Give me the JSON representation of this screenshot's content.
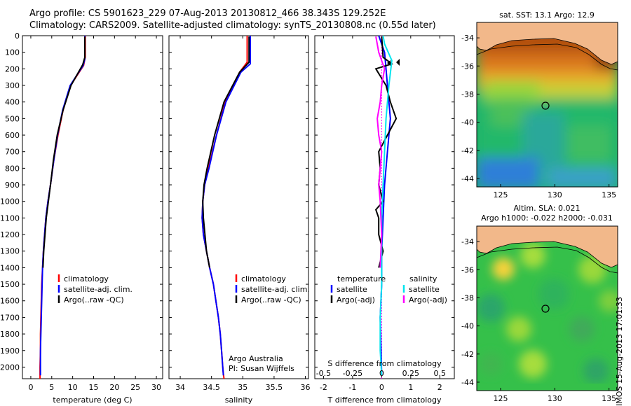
{
  "header": {
    "title_line1": "Argo profile: CS 5901623_229 07-Aug-2013 20130812_466 38.343S 129.252E",
    "title_line2": "Climatology: CARS2009. Satellite-adjusted climatology: synTS_20130808.nc (0.55d later)"
  },
  "stamp": "IMOS 15-Aug-2013 17:01:33",
  "colors": {
    "climatology": "#ff0000",
    "satellite": "#0000ff",
    "argo": "#000000",
    "salinity_satellite": "#00e5ee",
    "salinity_argo": "#ff00ff"
  },
  "chart_data": [
    {
      "type": "line",
      "name": "temperature",
      "xlabel": "temperature (deg C)",
      "xlim": [
        -2,
        31.5
      ],
      "xticks": [
        0,
        5,
        10,
        15,
        20,
        25,
        30
      ],
      "ylim": [
        0,
        2070
      ],
      "yticks": [
        0,
        100,
        200,
        300,
        400,
        500,
        600,
        700,
        800,
        900,
        1000,
        1100,
        1200,
        1300,
        1400,
        1500,
        1600,
        1700,
        1800,
        1900,
        2000
      ],
      "y_reversed": true,
      "legend": [
        "climatology",
        "satellite-adj. clim.",
        "Argo(..raw -QC)"
      ],
      "legend_placement": "lower-center",
      "series": [
        {
          "name": "climatology",
          "color": "#ff0000",
          "x": [
            13.0,
            13.0,
            12.6,
            9.5,
            7.7,
            6.5,
            5.5,
            4.7,
            4.1,
            3.6,
            3.3,
            3.0,
            2.8,
            2.6,
            2.5,
            2.4,
            2.3,
            2.3,
            2.2,
            2.2,
            2.2,
            2.2
          ],
          "y": [
            0,
            130,
            180,
            300,
            450,
            600,
            750,
            900,
            1000,
            1100,
            1200,
            1300,
            1400,
            1500,
            1600,
            1700,
            1800,
            1900,
            2000,
            2050,
            2070,
            2070
          ]
        },
        {
          "name": "satellite-adj. clim.",
          "color": "#0000ff",
          "x": [
            12.9,
            12.9,
            12.5,
            9.4,
            7.6,
            6.4,
            5.5,
            4.7,
            4.1,
            3.6,
            3.3,
            3.0,
            2.8,
            2.7,
            2.6,
            2.5,
            2.4,
            2.3,
            2.3,
            2.3
          ],
          "y": [
            0,
            140,
            180,
            300,
            450,
            600,
            750,
            900,
            1000,
            1100,
            1200,
            1300,
            1400,
            1500,
            1600,
            1700,
            1800,
            1900,
            2000,
            2050
          ]
        },
        {
          "name": "Argo(..raw -QC)",
          "color": "#000000",
          "x": [
            12.9,
            12.9,
            12.4,
            9.6,
            7.7,
            6.3,
            5.4,
            4.8,
            4.2,
            3.7,
            3.4,
            3.1,
            2.9
          ],
          "y": [
            5,
            130,
            175,
            300,
            450,
            600,
            750,
            880,
            1000,
            1100,
            1200,
            1300,
            1400
          ]
        }
      ]
    },
    {
      "type": "line",
      "name": "salinity",
      "xlabel": "salinity",
      "xlim": [
        33.82,
        36.05
      ],
      "xticks": [
        34,
        34.5,
        35,
        35.5,
        36
      ],
      "xticklabels": [
        "34",
        "34.5",
        "35",
        "35.5",
        "36"
      ],
      "ylim": [
        0,
        2070
      ],
      "y_reversed": true,
      "legend": [
        "climatology",
        "satellite-adj. clim.",
        "Argo(..raw -QC)"
      ],
      "legend_placement": "lower-right",
      "annotations": [
        "Argo Australia",
        "PI: Susan Wijffels"
      ],
      "series": [
        {
          "name": "climatology",
          "color": "#ff0000",
          "x": [
            35.07,
            35.07,
            34.95,
            34.72,
            34.58,
            34.45,
            34.39,
            34.36,
            34.35,
            34.37,
            34.42,
            34.47,
            34.53,
            34.57,
            34.61,
            34.64,
            34.66,
            34.68,
            34.69,
            34.7,
            34.7
          ],
          "y": [
            0,
            160,
            220,
            400,
            600,
            800,
            900,
            1000,
            1100,
            1200,
            1300,
            1400,
            1500,
            1600,
            1700,
            1800,
            1900,
            2000,
            2040,
            2070,
            2070
          ]
        },
        {
          "name": "satellite-adj. clim.",
          "color": "#0000ff",
          "x": [
            35.12,
            35.12,
            34.97,
            34.73,
            34.58,
            34.46,
            34.39,
            34.36,
            34.35,
            34.37,
            34.42,
            34.47,
            34.53,
            34.57,
            34.61,
            34.64,
            34.66,
            34.68,
            34.69
          ],
          "y": [
            0,
            170,
            220,
            400,
            600,
            800,
            900,
            1000,
            1100,
            1200,
            1300,
            1400,
            1500,
            1600,
            1700,
            1800,
            1900,
            2000,
            2050
          ]
        },
        {
          "name": "Argo(..raw -QC)",
          "color": "#000000",
          "x": [
            35.1,
            35.1,
            34.95,
            34.7,
            34.55,
            34.43,
            34.38,
            34.36,
            34.37,
            34.42,
            34.47
          ],
          "y": [
            5,
            160,
            220,
            400,
            600,
            800,
            900,
            1000,
            1100,
            1300,
            1400
          ]
        }
      ]
    },
    {
      "type": "line",
      "name": "difference",
      "xlabel": "T difference from climatology",
      "xlim": [
        -2.3,
        2.5
      ],
      "xticks": [
        -2,
        -1,
        0,
        1,
        2
      ],
      "top_axis_label": "S difference from climatology",
      "top_ticks": [
        "-0.5",
        "-0.25",
        "0",
        "0.25",
        "0.5"
      ],
      "ylim": [
        0,
        2070
      ],
      "y_reversed": true,
      "legend": [
        "temperature",
        "satellite",
        "Argo(-adj)",
        "salinity",
        "satellite",
        "Argo(-adj)"
      ],
      "legend_placement": "lower-center",
      "series": [
        {
          "name": "satellite",
          "color": "#0000ff",
          "x": [
            -0.1,
            0.1,
            0.15,
            0.2,
            0.3,
            0.2,
            0.1,
            0.05,
            0.0,
            0.0,
            -0.05,
            0.0
          ],
          "y": [
            0,
            100,
            200,
            300,
            500,
            700,
            900,
            1100,
            1300,
            1500,
            1700,
            2050
          ]
        },
        {
          "name": "Argo(-adj)",
          "color": "#000000",
          "x": [
            0.0,
            0.05,
            0.35,
            -0.2,
            0.15,
            0.3,
            0.5,
            0.2,
            -0.1,
            -0.05,
            -0.1,
            0.05,
            -0.2,
            -0.1,
            -0.1,
            0.05,
            -0.1
          ],
          "y": [
            5,
            130,
            170,
            200,
            300,
            400,
            500,
            600,
            700,
            800,
            900,
            1000,
            1050,
            1100,
            1200,
            1300,
            1400
          ]
        },
        {
          "name": "salinity satellite",
          "color": "#00e5ee",
          "x": [
            0.05,
            0.1,
            0.35,
            0.25,
            0.15,
            0.1,
            0.05,
            0.0,
            0.0,
            0.0,
            -0.05,
            -0.05,
            0.0
          ],
          "y": [
            0,
            50,
            150,
            300,
            500,
            700,
            900,
            1100,
            1300,
            1500,
            1700,
            1900,
            2050
          ]
        },
        {
          "name": "salinity Argo(-adj)",
          "color": "#ff00ff",
          "x": [
            -0.2,
            -0.1,
            0.1,
            0.0,
            -0.05,
            -0.15,
            -0.1,
            0.0,
            -0.05,
            -0.1,
            -0.05,
            0.0,
            -0.05
          ],
          "y": [
            5,
            100,
            200,
            300,
            400,
            500,
            600,
            700,
            800,
            900,
            1000,
            1200,
            1400
          ]
        }
      ]
    },
    {
      "type": "heatmap",
      "name": "sst-map",
      "title": "sat. SST: 13.1 Argo: 12.9",
      "xticks": [
        125,
        130,
        135
      ],
      "yticks": [
        -34,
        -36,
        -38,
        -40,
        -42,
        -44
      ],
      "xlim": [
        122.8,
        135.8
      ],
      "ylim": [
        -44.6,
        -32.9
      ],
      "marker": {
        "lon": 129.252,
        "lat": -38.343
      }
    },
    {
      "type": "heatmap",
      "name": "sla-map",
      "title": "Altim. SLA: 0.021",
      "subtitle": "Argo h1000: -0.022 h2000: -0.031",
      "xticks": [
        125,
        130,
        135
      ],
      "yticks": [
        -34,
        -36,
        -38,
        -40,
        -42,
        -44
      ],
      "xlim": [
        122.8,
        135.8
      ],
      "ylim": [
        -44.6,
        -32.9
      ],
      "marker": {
        "lon": 129.252,
        "lat": -38.343
      }
    }
  ]
}
